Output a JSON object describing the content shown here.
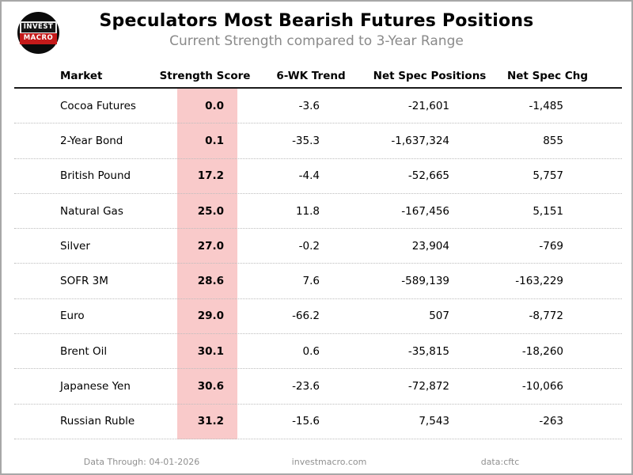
{
  "header": {
    "title": "Speculators Most Bearish Futures Positions",
    "subtitle": "Current Strength compared to 3-Year Range",
    "logo": {
      "line1": "INVEST",
      "line2": "MACRO"
    }
  },
  "table": {
    "columns": [
      "Market",
      "Strength Score",
      "6-WK Trend",
      "Net Spec Positions",
      "Net Spec Chg"
    ],
    "rows": [
      {
        "cells": [
          "Cocoa Futures",
          "0.0",
          "-3.6",
          "-21,601",
          "-1,485"
        ]
      },
      {
        "cells": [
          "2-Year Bond",
          "0.1",
          "-35.3",
          "-1,637,324",
          "855"
        ]
      },
      {
        "cells": [
          "British Pound",
          "17.2",
          "-4.4",
          "-52,665",
          "5,757"
        ]
      },
      {
        "cells": [
          "Natural Gas",
          "25.0",
          "11.8",
          "-167,456",
          "5,151"
        ]
      },
      {
        "cells": [
          "Silver",
          "27.0",
          "-0.2",
          "23,904",
          "-769"
        ]
      },
      {
        "cells": [
          "SOFR 3M",
          "28.6",
          "7.6",
          "-589,139",
          "-163,229"
        ]
      },
      {
        "cells": [
          "Euro",
          "29.0",
          "-66.2",
          "507",
          "-8,772"
        ]
      },
      {
        "cells": [
          "Brent Oil",
          "30.1",
          "0.6",
          "-35,815",
          "-18,260"
        ]
      },
      {
        "cells": [
          "Japanese Yen",
          "30.6",
          "-23.6",
          "-72,872",
          "-10,066"
        ]
      },
      {
        "cells": [
          "Russian Ruble",
          "31.2",
          "-15.6",
          "7,543",
          "-263"
        ]
      }
    ]
  },
  "footer": {
    "data_through": "Data Through: 04-01-2026",
    "website": "investmacro.com",
    "source": "data:cftc"
  },
  "colors": {
    "strength_highlight": "#f9caca",
    "logo_red": "#c41a1a",
    "subtitle_gray": "#8a8a8a",
    "footer_gray": "#909090",
    "frame_gray": "#a8a8a8"
  },
  "chart_data": {
    "type": "table",
    "title": "Speculators Most Bearish Futures Positions",
    "subtitle": "Current Strength compared to 3-Year Range",
    "columns": [
      "Market",
      "Strength Score",
      "6-WK Trend",
      "Net Spec Positions",
      "Net Spec Chg"
    ],
    "rows": [
      [
        "Cocoa Futures",
        0.0,
        -3.6,
        -21601,
        -1485
      ],
      [
        "2-Year Bond",
        0.1,
        -35.3,
        -1637324,
        855
      ],
      [
        "British Pound",
        17.2,
        -4.4,
        -52665,
        5757
      ],
      [
        "Natural Gas",
        25.0,
        11.8,
        -167456,
        5151
      ],
      [
        "Silver",
        27.0,
        -0.2,
        23904,
        -769
      ],
      [
        "SOFR 3M",
        28.6,
        7.6,
        -589139,
        -163229
      ],
      [
        "Euro",
        29.0,
        -66.2,
        507,
        -8772
      ],
      [
        "Brent Oil",
        30.1,
        0.6,
        -35815,
        -18260
      ],
      [
        "Japanese Yen",
        30.6,
        -23.6,
        -72872,
        -10066
      ],
      [
        "Russian Ruble",
        31.2,
        -15.6,
        7543,
        -263
      ]
    ],
    "highlighted_column": "Strength Score",
    "notes": [
      "Data Through: 04-01-2026",
      "investmacro.com",
      "data:cftc"
    ]
  }
}
